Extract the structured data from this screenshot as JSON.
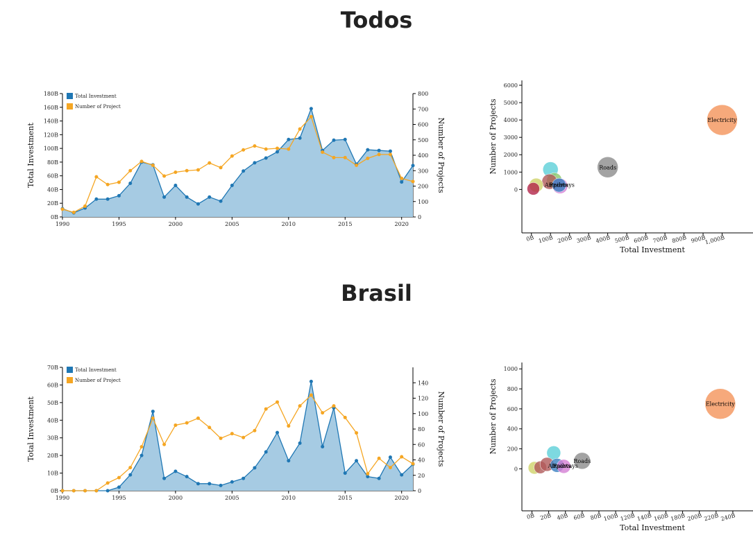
{
  "sections": [
    {
      "title": "Todos"
    },
    {
      "title": "Brasil"
    }
  ],
  "chart_data": [
    {
      "type": "area",
      "section": "Todos",
      "title": "",
      "ylabel": "Total Investment",
      "y2label": "Number of Projects",
      "x": [
        1990,
        1991,
        1992,
        1993,
        1994,
        1995,
        1996,
        1997,
        1998,
        1999,
        2000,
        2001,
        2002,
        2003,
        2004,
        2005,
        2006,
        2007,
        2008,
        2009,
        2010,
        2011,
        2012,
        2013,
        2014,
        2015,
        2016,
        2017,
        2018,
        2019,
        2020,
        2021
      ],
      "xticks": [
        1990,
        1995,
        2000,
        2005,
        2010,
        2015,
        2020
      ],
      "xlim": [
        1990,
        2021
      ],
      "ylim": [
        0,
        180
      ],
      "yticks": [
        0,
        20,
        40,
        60,
        80,
        100,
        120,
        140,
        160,
        180
      ],
      "yticklabels": [
        "0B",
        "20B",
        "40B",
        "60B",
        "80B",
        "100B",
        "120B",
        "140B",
        "160B",
        "180B"
      ],
      "y2lim": [
        0,
        800
      ],
      "y2ticks": [
        0,
        100,
        200,
        300,
        400,
        500,
        600,
        700,
        800
      ],
      "legend": [
        "Total Investment",
        "Number of Project"
      ],
      "legend_position": "top-left",
      "series": [
        {
          "name": "Total Investment",
          "axis": "left",
          "color": "#1f77b4",
          "fill": "#a6cbe3",
          "values": [
            12,
            6,
            13,
            26,
            26,
            31,
            49,
            80,
            76,
            29,
            46,
            29,
            19,
            29,
            23,
            46,
            67,
            79,
            86,
            95,
            113,
            115,
            158,
            97,
            112,
            113,
            77,
            98,
            97,
            96,
            51,
            75
          ]
        },
        {
          "name": "Number of Project",
          "axis": "right",
          "color": "#f5a623",
          "values": [
            50,
            30,
            70,
            260,
            210,
            225,
            300,
            360,
            335,
            265,
            290,
            300,
            305,
            350,
            320,
            395,
            435,
            460,
            440,
            445,
            440,
            570,
            650,
            420,
            385,
            385,
            335,
            380,
            405,
            405,
            250,
            230
          ]
        }
      ]
    },
    {
      "type": "scatter",
      "section": "Todos",
      "xlabel": "Total Investment",
      "ylabel": "Number of Projects",
      "xlim": [
        -50,
        1100
      ],
      "ylim": [
        -2500,
        6200
      ],
      "xticks": [
        0,
        100,
        200,
        300,
        400,
        500,
        600,
        700,
        800,
        900,
        1000
      ],
      "xticklabels": [
        "0B",
        "100B",
        "200B",
        "300B",
        "400B",
        "500B",
        "600B",
        "700B",
        "800B",
        "900B",
        "1,000B"
      ],
      "yticks": [
        0,
        1000,
        2000,
        3000,
        4000,
        5000,
        6000
      ],
      "points": [
        {
          "label": "Electricity",
          "x": 1000,
          "y": 4000,
          "r": 22,
          "color": "#f4935a"
        },
        {
          "label": "Roads",
          "x": 400,
          "y": 1280,
          "r": 15,
          "color": "#8c8c8c"
        },
        {
          "label": "",
          "x": 100,
          "y": 1150,
          "r": 11,
          "color": "#5ccfd8"
        },
        {
          "label": "",
          "x": 120,
          "y": 520,
          "r": 11,
          "color": "#8cc96a"
        },
        {
          "label": "",
          "x": 95,
          "y": 450,
          "r": 11,
          "color": "#b05a5a"
        },
        {
          "label": "",
          "x": 25,
          "y": 250,
          "r": 10,
          "color": "#cfd36a"
        },
        {
          "label": "",
          "x": 10,
          "y": 40,
          "r": 9,
          "color": "#b3264a"
        },
        {
          "label": "",
          "x": 150,
          "y": 200,
          "r": 11,
          "color": "#d47fd4"
        },
        {
          "label": "",
          "x": 145,
          "y": 250,
          "r": 10,
          "color": "#3a7fc1"
        },
        {
          "label": "Airports",
          "x": 130,
          "y": 280,
          "r": 0,
          "color": "#000000"
        },
        {
          "label": "Railways",
          "x": 160,
          "y": 280,
          "r": 0,
          "color": "#000000"
        }
      ]
    },
    {
      "type": "area",
      "section": "Brasil",
      "title": "",
      "ylabel": "Total Investment",
      "y2label": "Number of Projects",
      "x": [
        1990,
        1991,
        1992,
        1993,
        1994,
        1995,
        1996,
        1997,
        1998,
        1999,
        2000,
        2001,
        2002,
        2003,
        2004,
        2005,
        2006,
        2007,
        2008,
        2009,
        2010,
        2011,
        2012,
        2013,
        2014,
        2015,
        2016,
        2017,
        2018,
        2019,
        2020,
        2021
      ],
      "xticks": [
        1990,
        1995,
        2000,
        2005,
        2010,
        2015,
        2020
      ],
      "xlim": [
        1990,
        2021
      ],
      "ylim": [
        0,
        70
      ],
      "yticks": [
        0,
        10,
        20,
        30,
        40,
        50,
        60,
        70
      ],
      "yticklabels": [
        "0B",
        "10B",
        "20B",
        "30B",
        "40B",
        "50B",
        "60B",
        "70B"
      ],
      "y2lim": [
        0,
        160
      ],
      "y2ticks": [
        0,
        20,
        40,
        60,
        80,
        100,
        120,
        140
      ],
      "legend": [
        "Total Investment",
        "Number of Project"
      ],
      "legend_position": "top-left",
      "series": [
        {
          "name": "Total Investment",
          "axis": "left",
          "color": "#1f77b4",
          "fill": "#a6cbe3",
          "values": [
            0,
            0,
            0,
            0,
            0,
            2,
            9,
            20,
            45,
            7,
            11,
            8,
            4,
            4,
            3,
            5,
            7,
            13,
            22,
            33,
            17,
            27,
            62,
            25,
            47,
            10,
            17,
            8,
            7,
            19,
            9,
            15
          ]
        },
        {
          "name": "Number of Project",
          "axis": "right",
          "color": "#f5a623",
          "values": [
            0,
            0,
            0,
            0,
            10,
            17,
            30,
            57,
            94,
            60,
            85,
            88,
            94,
            82,
            68,
            74,
            69,
            78,
            106,
            115,
            84,
            110,
            124,
            101,
            110,
            95,
            75,
            22,
            42,
            30,
            44,
            35
          ]
        }
      ]
    },
    {
      "type": "scatter",
      "section": "Brasil",
      "xlabel": "Total Investment",
      "ylabel": "Number of Projects",
      "xlim": [
        -12,
        250
      ],
      "ylim": [
        -420,
        1050
      ],
      "xticks": [
        0,
        20,
        40,
        60,
        80,
        100,
        120,
        140,
        160,
        180,
        200,
        220,
        240
      ],
      "xticklabels": [
        "0B",
        "20B",
        "40B",
        "60B",
        "80B",
        "100B",
        "120B",
        "140B",
        "160B",
        "180B",
        "200B",
        "220B",
        "240B"
      ],
      "yticks": [
        0,
        200,
        400,
        600,
        800,
        1000
      ],
      "points": [
        {
          "label": "Electricity",
          "x": 225,
          "y": 650,
          "r": 22,
          "color": "#f4935a"
        },
        {
          "label": "Roads",
          "x": 60,
          "y": 80,
          "r": 12,
          "color": "#8c8c8c"
        },
        {
          "label": "",
          "x": 26,
          "y": 160,
          "r": 10,
          "color": "#5ccfd8"
        },
        {
          "label": "",
          "x": 3,
          "y": 10,
          "r": 9,
          "color": "#cfd36a"
        },
        {
          "label": "",
          "x": 10,
          "y": 15,
          "r": 9,
          "color": "#b05a5a"
        },
        {
          "label": "",
          "x": 18,
          "y": 45,
          "r": 10,
          "color": "#b05a5a"
        },
        {
          "label": "",
          "x": 30,
          "y": 35,
          "r": 10,
          "color": "#3a7fc1"
        },
        {
          "label": "",
          "x": 38,
          "y": 25,
          "r": 10,
          "color": "#d47fd4"
        },
        {
          "label": "Airports",
          "x": 33,
          "y": 30,
          "r": 0,
          "color": "#000000"
        },
        {
          "label": "Railways",
          "x": 40,
          "y": 30,
          "r": 0,
          "color": "#000000"
        }
      ]
    }
  ]
}
